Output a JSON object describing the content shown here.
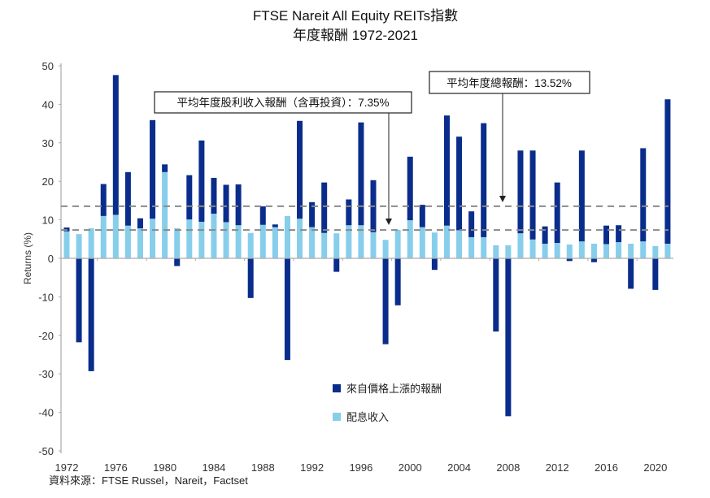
{
  "chart_data": {
    "type": "bar",
    "stacked": true,
    "title": "FTSE Nareit All Equity REITs指數",
    "subtitle": "年度報酬 1972-2021",
    "ylabel": "Returns (%)",
    "xlabel": "",
    "ylim": [
      -50,
      50
    ],
    "yticks": [
      50,
      40,
      30,
      20,
      10,
      0,
      -10,
      -20,
      -30,
      -40,
      -50
    ],
    "xtick_labels": [
      "1972",
      "1976",
      "1980",
      "1984",
      "1988",
      "1992",
      "1996",
      "2000",
      "2004",
      "2008",
      "2012",
      "2016",
      "2020"
    ],
    "years": [
      1972,
      1973,
      1974,
      1975,
      1976,
      1977,
      1978,
      1979,
      1980,
      1981,
      1982,
      1983,
      1984,
      1985,
      1986,
      1987,
      1988,
      1989,
      1990,
      1991,
      1992,
      1993,
      1994,
      1995,
      1996,
      1997,
      1998,
      1999,
      2000,
      2001,
      2002,
      2003,
      2004,
      2005,
      2006,
      2007,
      2008,
      2009,
      2010,
      2011,
      2012,
      2013,
      2014,
      2015,
      2016,
      2017,
      2018,
      2019,
      2020,
      2021
    ],
    "series": [
      {
        "name": "配息收入",
        "color": "#87CEEB",
        "values": [
          7.0,
          6.3,
          7.8,
          11.0,
          11.3,
          8.5,
          7.8,
          10.3,
          22.4,
          7.8,
          10.1,
          9.5,
          11.6,
          9.4,
          8.6,
          6.6,
          8.7,
          8.1,
          11.0,
          10.3,
          8.1,
          6.6,
          6.5,
          8.6,
          8.6,
          6.8,
          4.8,
          7.4,
          9.9,
          8.1,
          6.7,
          8.5,
          7.3,
          5.5,
          5.5,
          3.4,
          3.4,
          6.5,
          4.9,
          3.8,
          4.0,
          3.6,
          4.4,
          3.8,
          3.7,
          4.2,
          3.8,
          4.4,
          3.2,
          3.8
        ]
      },
      {
        "name": "來自價格上漲的報酬",
        "color": "#0A2D8C",
        "values": [
          1.0,
          -21.8,
          -29.3,
          8.3,
          36.3,
          13.9,
          2.6,
          25.6,
          2.0,
          -2.0,
          11.5,
          21.1,
          9.3,
          9.7,
          10.6,
          -10.3,
          4.8,
          0.7,
          -26.4,
          25.4,
          6.5,
          13.1,
          -3.5,
          6.7,
          26.7,
          13.5,
          -22.3,
          -12.2,
          16.5,
          5.8,
          -3.0,
          28.6,
          24.3,
          6.7,
          29.6,
          -19.0,
          -41.0,
          21.5,
          23.1,
          4.5,
          15.7,
          -0.7,
          23.6,
          -1.0,
          4.8,
          4.4,
          -7.9,
          24.2,
          -8.2,
          37.5
        ]
      }
    ],
    "reference_lines": [
      {
        "value": 7.35,
        "label": "平均年度股利收入報酬（含再投資）：7.35%"
      },
      {
        "value": 13.52,
        "label": "平均年度總報酬：13.52%"
      }
    ],
    "legend_position": "bottom-center",
    "grid": false
  },
  "source": "資料來源：FTSE Russel，Nareit，Factset"
}
